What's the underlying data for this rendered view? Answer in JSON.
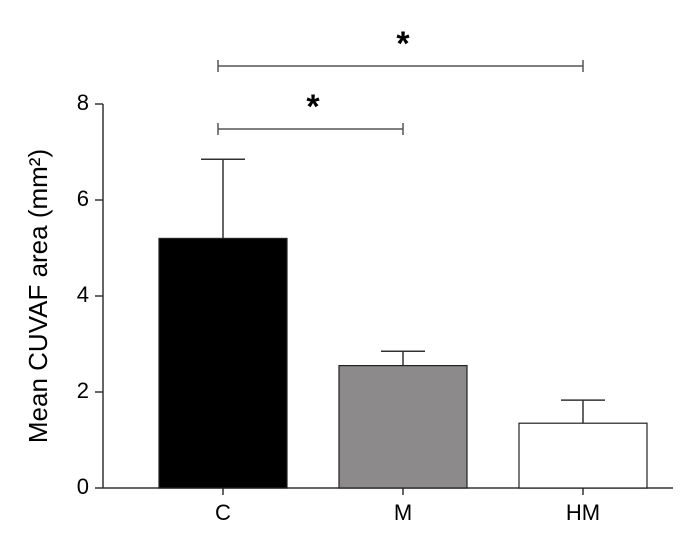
{
  "chart_data": {
    "type": "bar",
    "y_label": "Mean CUVAF area (mm²)",
    "categories": [
      "C",
      "M",
      "HM"
    ],
    "values": [
      5.2,
      2.55,
      1.35
    ],
    "errors": [
      1.65,
      0.3,
      0.48
    ],
    "colors": [
      "#000000",
      "#8c8a8b",
      "#ffffff"
    ],
    "ylim": [
      0,
      8
    ],
    "yticks": [
      0,
      2,
      4,
      6,
      8
    ],
    "significance": [
      {
        "label": "*",
        "between": [
          "C",
          "M"
        ]
      },
      {
        "label": "*",
        "between": [
          "C",
          "HM"
        ]
      }
    ]
  }
}
